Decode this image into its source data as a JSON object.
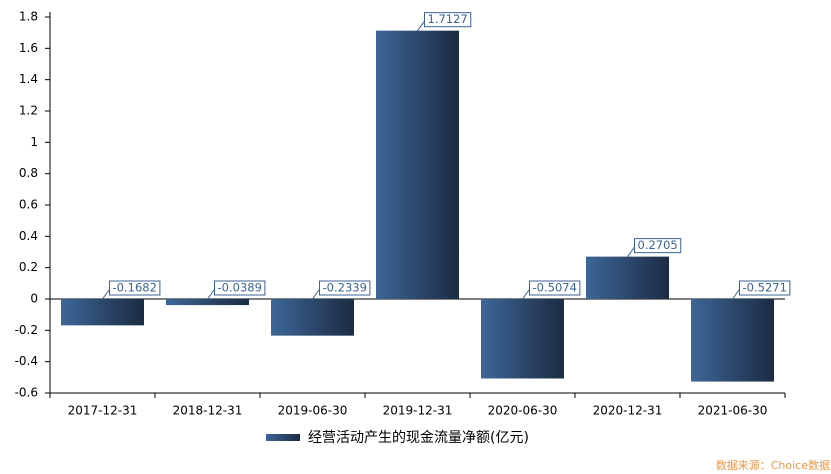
{
  "chart_data": {
    "type": "bar",
    "categories": [
      "2017-12-31",
      "2018-12-31",
      "2019-06-30",
      "2019-12-31",
      "2020-06-30",
      "2020-12-31",
      "2021-06-30"
    ],
    "series": [
      {
        "name": "经营活动产生的现金流量净额(亿元)",
        "color": "#2d4a70",
        "values": [
          -0.1682,
          -0.0389,
          -0.2339,
          1.7127,
          -0.5074,
          0.2705,
          -0.5271
        ]
      }
    ],
    "ylim": [
      -0.6,
      1.8
    ],
    "yticks": [
      -0.6,
      -0.4,
      -0.2,
      0,
      0.2,
      0.4,
      0.6,
      0.8,
      1,
      1.2,
      1.4,
      1.6,
      1.8
    ],
    "source": "数据来源：Choice数据"
  }
}
